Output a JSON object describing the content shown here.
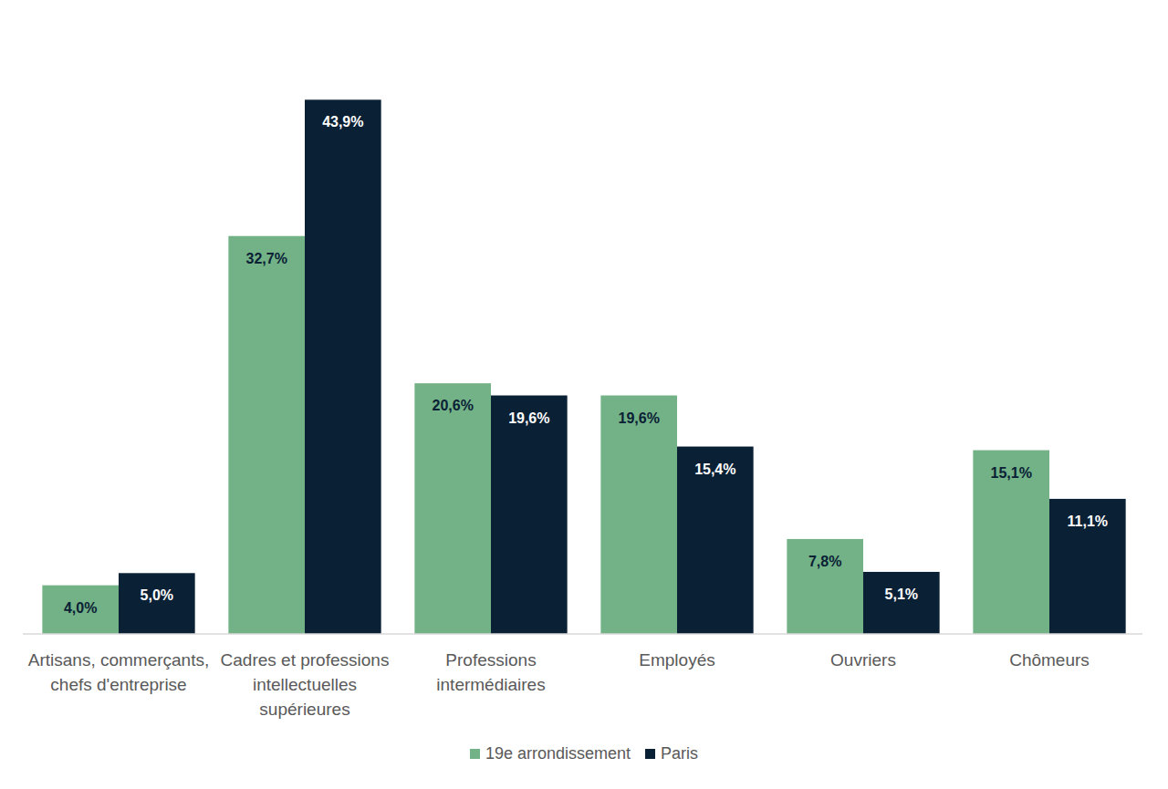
{
  "chart_data": {
    "type": "bar",
    "categories": [
      "Artisans, commerçants, chefs d'entreprise",
      "Cadres et professions intellectuelles supérieures",
      "Professions intermédiaires",
      "Employés",
      "Ouvriers",
      "Chômeurs"
    ],
    "series": [
      {
        "name": "19e arrondissement",
        "color": "#72b286",
        "values": [
          4.0,
          32.7,
          20.6,
          19.6,
          7.8,
          15.1
        ],
        "value_labels": [
          "4,0%",
          "32,7%",
          "20,6%",
          "19,6%",
          "7,8%",
          "15,1%"
        ]
      },
      {
        "name": "Paris",
        "color": "#0a2035",
        "values": [
          5.0,
          43.9,
          19.6,
          15.4,
          5.1,
          11.1
        ],
        "value_labels": [
          "5,0%",
          "43,9%",
          "19,6%",
          "15,4%",
          "5,1%",
          "11,1%"
        ]
      }
    ],
    "ylim": [
      0,
      44
    ],
    "grid": false,
    "legend": "bottom",
    "data_labels": true,
    "tick_labels": "x"
  }
}
